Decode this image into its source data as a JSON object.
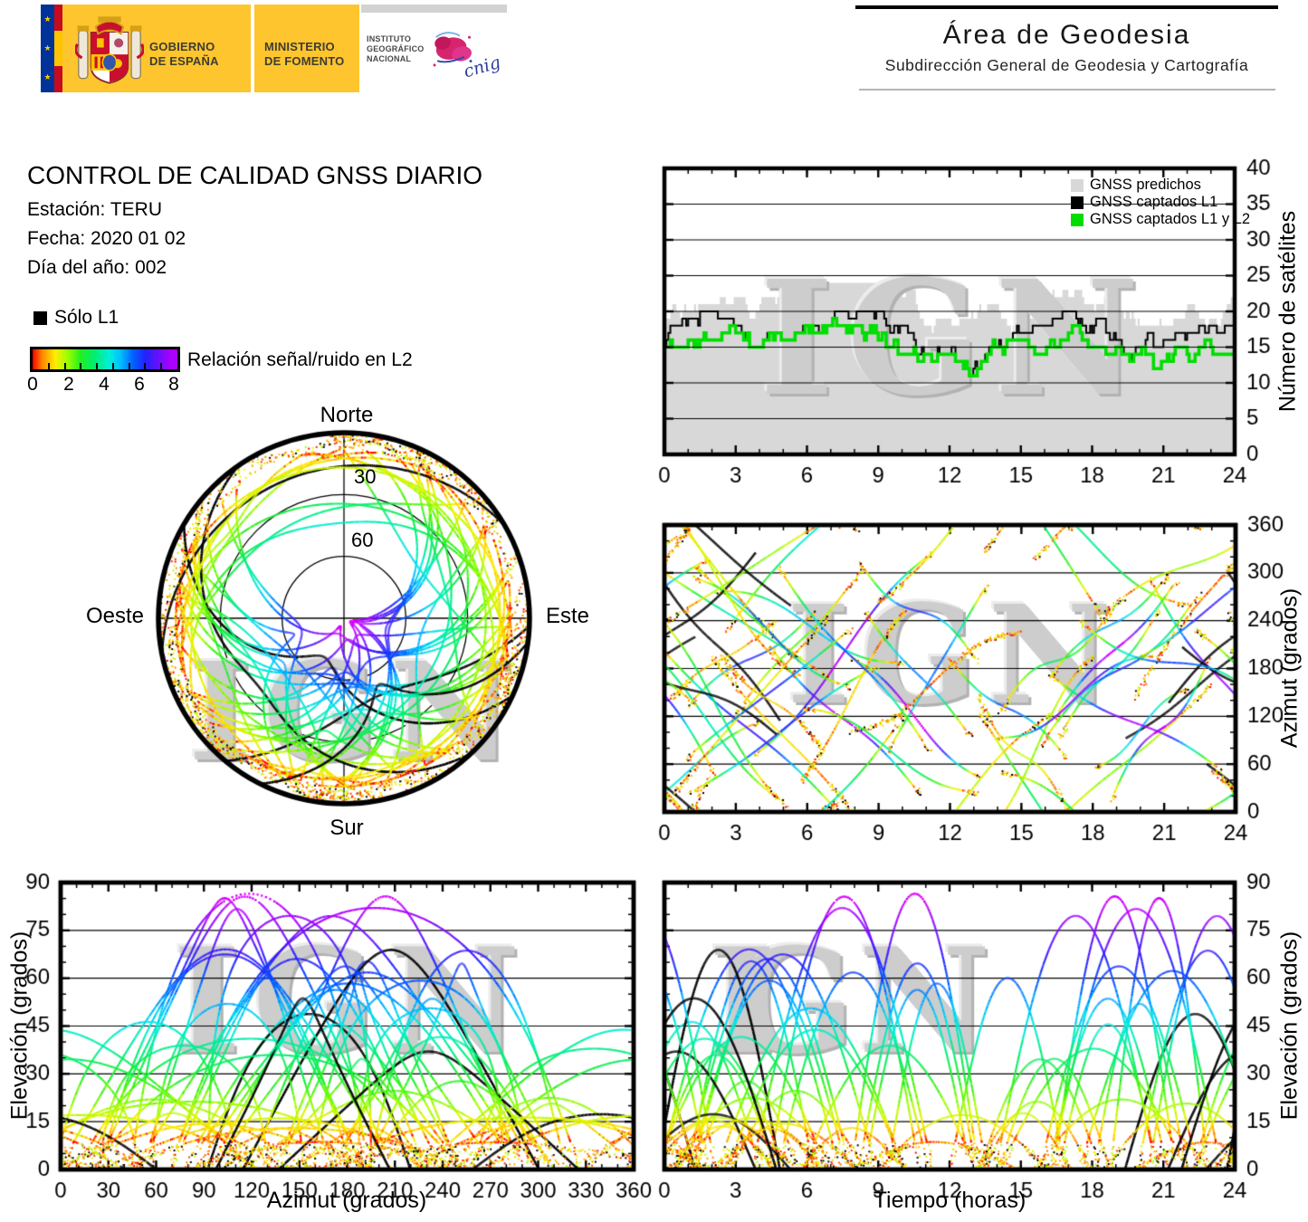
{
  "header": {
    "left": {
      "gobierno_line1": "GOBIERNO",
      "gobierno_line2": "DE ESPAÑA",
      "ministerio_line1": "MINISTERIO",
      "ministerio_line2": "DE FOMENTO",
      "instituto_line1": "INSTITUTO",
      "instituto_line2": "GEOGRÁFICO",
      "instituto_line3": "NACIONAL",
      "cnig_script": "cnig"
    },
    "right": {
      "title": "Área de Geodesia",
      "subtitle": "Subdirección General de Geodesia y Cartografía"
    }
  },
  "report": {
    "title": "CONTROL DE CALIDAD GNSS DIARIO",
    "station_line": "Estación: TERU",
    "date_line": "Fecha: 2020 01 02",
    "doy_line": "Día del año: 002"
  },
  "legend": {
    "solo_l1": "Sólo L1",
    "solo_l1_color": "#000000",
    "colorbar_label": "Relación señal/ruido en L2",
    "colorbar_ticks": [
      "0",
      "2",
      "4",
      "6",
      "8"
    ],
    "colorbar_range": [
      0,
      8.5
    ],
    "colorbar_stops": [
      [
        0,
        "#ff0000"
      ],
      [
        0.6,
        "#ff8800"
      ],
      [
        1.4,
        "#ffee00"
      ],
      [
        2.2,
        "#99ff00"
      ],
      [
        3.0,
        "#22ee22"
      ],
      [
        3.9,
        "#00ee77"
      ],
      [
        4.8,
        "#00eedd"
      ],
      [
        5.5,
        "#00bbff"
      ],
      [
        6.2,
        "#0066ff"
      ],
      [
        7.0,
        "#2222ff"
      ],
      [
        7.8,
        "#6611ff"
      ],
      [
        8.6,
        "#aa00ff"
      ],
      [
        9.3,
        "#dd00ff"
      ],
      [
        10,
        "#ff33ff"
      ]
    ]
  },
  "watermark": {
    "text": "IGN",
    "color": "#cdcdcd"
  },
  "simulation": {
    "seed": 20200102,
    "n_passes": 56,
    "steps_per_pass": 240,
    "l1_only_every": 11
  },
  "chart_data": [
    {
      "id": "satellite_count",
      "type": "area",
      "xlabel": "",
      "ylabel": "Número de satélites",
      "xlim": [
        0,
        24
      ],
      "ylim": [
        0,
        40
      ],
      "xtick_labels": [
        "0",
        "3",
        "6",
        "9",
        "12",
        "15",
        "18",
        "21",
        "24"
      ],
      "ytick_labels": [
        "0",
        "5",
        "10",
        "15",
        "20",
        "25",
        "30",
        "35",
        "40"
      ],
      "grid": "horizontal",
      "legend_position": "top-right",
      "legend": [
        {
          "label": "GNSS predichos",
          "color": "#d8d8d8"
        },
        {
          "label": "GNSS captados L1",
          "color": "#000000"
        },
        {
          "label": "GNSS captados L1 y L2",
          "color": "#00dd00"
        }
      ],
      "series": [
        {
          "name": "GNSS predichos",
          "style": "filled-steps",
          "approx_hourly": [
            17,
            19,
            21,
            20,
            19,
            20,
            21,
            21,
            21,
            20,
            18,
            17,
            17,
            17,
            18,
            17,
            18,
            20,
            20,
            18,
            17,
            18,
            18,
            17,
            17
          ]
        },
        {
          "name": "GNSS captados L1",
          "style": "steps",
          "approx_hourly": [
            15,
            17,
            18,
            18,
            17,
            18,
            19,
            19,
            18,
            18,
            16,
            15,
            16,
            13,
            16,
            16,
            16,
            18,
            17,
            16,
            15,
            14,
            15,
            16,
            16
          ]
        },
        {
          "name": "GNSS captados L1 y L2",
          "style": "steps",
          "approx_hourly": [
            14,
            16,
            17,
            17,
            16,
            17,
            18,
            18,
            17,
            17,
            15,
            14,
            15,
            12,
            15,
            15,
            15,
            17,
            16,
            15,
            14,
            13,
            14,
            15,
            15
          ]
        }
      ]
    },
    {
      "id": "azimuth_time",
      "type": "scatter",
      "xlabel": "",
      "ylabel": "Azimut (grados)",
      "xlim": [
        0,
        24
      ],
      "ylim": [
        0,
        360
      ],
      "xtick_labels": [
        "0",
        "3",
        "6",
        "9",
        "12",
        "15",
        "18",
        "21",
        "24"
      ],
      "ytick_labels": [
        "0",
        "60",
        "120",
        "180",
        "240",
        "300",
        "360"
      ],
      "grid": "horizontal",
      "tracks_simulated": true,
      "color_by": "Relación señal/ruido en L2",
      "l1_only_track_color": "#000000"
    },
    {
      "id": "skyplot",
      "type": "polar-tracks",
      "labels": {
        "north": "Norte",
        "south": "Sur",
        "east": "Este",
        "west": "Oeste",
        "ring30": "30",
        "ring60": "60"
      },
      "elevation_rings": [
        30,
        60
      ],
      "tracks_simulated": true,
      "color_by": "Relación señal/ruido en L2",
      "l1_only_track_color": "#000000"
    },
    {
      "id": "elevation_azimuth",
      "type": "scatter",
      "xlabel": "Azimut (grados)",
      "ylabel": "Elevación (grados)",
      "xlim": [
        0,
        360
      ],
      "ylim": [
        0,
        90
      ],
      "xtick_labels": [
        "0",
        "30",
        "60",
        "90",
        "120",
        "150",
        "180",
        "210",
        "240",
        "270",
        "300",
        "330",
        "360"
      ],
      "ytick_labels": [
        "0",
        "15",
        "30",
        "45",
        "60",
        "75",
        "90"
      ],
      "grid": "horizontal",
      "tracks_simulated": true,
      "color_by": "Relación señal/ruido en L2",
      "l1_only_track_color": "#000000"
    },
    {
      "id": "elevation_time",
      "type": "scatter",
      "xlabel": "Tiempo (horas)",
      "ylabel": "Elevación (grados)",
      "xlim": [
        0,
        24
      ],
      "ylim": [
        0,
        90
      ],
      "xtick_labels": [
        "0",
        "3",
        "6",
        "9",
        "12",
        "15",
        "18",
        "21",
        "24"
      ],
      "ytick_labels": [
        "0",
        "15",
        "30",
        "45",
        "60",
        "75",
        "90"
      ],
      "grid": "horizontal",
      "tracks_simulated": true,
      "color_by": "Relación señal/ruido en L2",
      "l1_only_track_color": "#000000"
    }
  ]
}
